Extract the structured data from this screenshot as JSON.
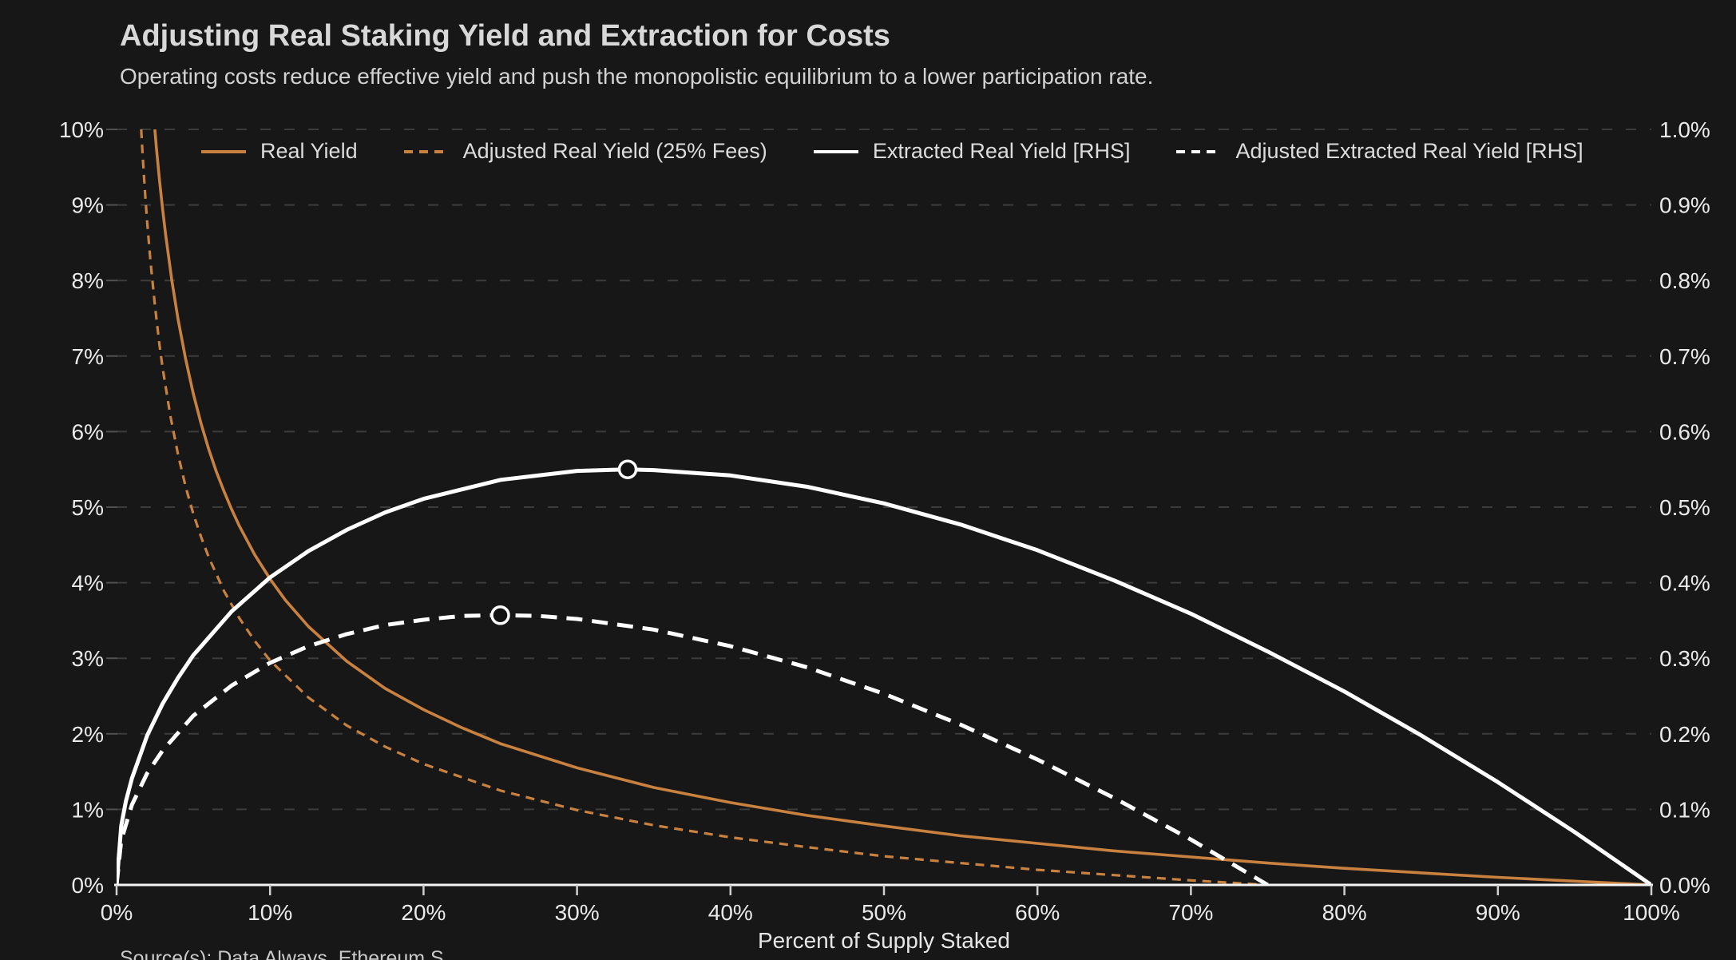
{
  "header": {
    "title": "Adjusting Real Staking Yield and Extraction for Costs",
    "subtitle": "Operating costs reduce effective yield and push the monopolistic equilibrium to a lower participation rate."
  },
  "footer": {
    "source": "Source(s): Data Always, Ethereum S"
  },
  "colors": {
    "background": "#171717",
    "orange": "#c9813f",
    "white_line": "#ffffff",
    "grid": "#3c3c3c",
    "axis_line": "#f5f5f5",
    "tick_label": "#eaeaea",
    "marker_fill": "#131313"
  },
  "chart_data": {
    "type": "line",
    "title": "Adjusting Real Staking Yield and Extraction for Costs",
    "xlabel": "Percent of Supply Staked",
    "grid": "horizontal-dashed",
    "legend_position": "top",
    "x_axis": {
      "label": "Percent of Supply Staked",
      "range": [
        0,
        100
      ],
      "tick_labels": [
        "0%",
        "10%",
        "20%",
        "30%",
        "40%",
        "50%",
        "60%",
        "70%",
        "80%",
        "90%",
        "100%"
      ],
      "tick_values": [
        0,
        10,
        20,
        30,
        40,
        50,
        60,
        70,
        80,
        90,
        100
      ]
    },
    "y_axis_left": {
      "range": [
        0,
        10
      ],
      "tick_labels": [
        "0%",
        "1%",
        "2%",
        "3%",
        "4%",
        "5%",
        "6%",
        "7%",
        "8%",
        "9%",
        "10%"
      ],
      "tick_values": [
        0,
        1,
        2,
        3,
        4,
        5,
        6,
        7,
        8,
        9,
        10
      ]
    },
    "y_axis_right": {
      "range": [
        0,
        1
      ],
      "tick_labels": [
        "0.0%",
        "0.1%",
        "0.2%",
        "0.3%",
        "0.4%",
        "0.5%",
        "0.6%",
        "0.7%",
        "0.8%",
        "0.9%",
        "1.0%"
      ],
      "tick_values": [
        0,
        0.1,
        0.2,
        0.3,
        0.4,
        0.5,
        0.6,
        0.7,
        0.8,
        0.9,
        1.0
      ]
    },
    "series": [
      {
        "name": "Real Yield",
        "axis": "left",
        "color": "#c9813f",
        "dash": "solid",
        "width": 3.6,
        "points": [
          [
            2.49,
            10
          ],
          [
            2.6,
            9.74
          ],
          [
            2.8,
            9.32
          ],
          [
            3,
            8.94
          ],
          [
            3.2,
            8.6
          ],
          [
            3.6,
            8.0
          ],
          [
            4,
            7.49
          ],
          [
            4.5,
            6.96
          ],
          [
            5,
            6.5
          ],
          [
            5.5,
            6.11
          ],
          [
            6,
            5.77
          ],
          [
            6.5,
            5.47
          ],
          [
            7,
            5.21
          ],
          [
            7.5,
            4.97
          ],
          [
            8,
            4.75
          ],
          [
            9,
            4.37
          ],
          [
            10,
            4.05
          ],
          [
            11,
            3.77
          ],
          [
            12.5,
            3.42
          ],
          [
            15,
            2.96
          ],
          [
            17.5,
            2.6
          ],
          [
            20,
            2.32
          ],
          [
            22.5,
            2.08
          ],
          [
            25,
            1.87
          ],
          [
            30,
            1.55
          ],
          [
            35,
            1.29
          ],
          [
            40,
            1.09
          ],
          [
            45,
            0.92
          ],
          [
            50,
            0.78
          ],
          [
            55,
            0.65
          ],
          [
            60,
            0.55
          ],
          [
            65,
            0.45
          ],
          [
            70,
            0.37
          ],
          [
            75,
            0.29
          ],
          [
            80,
            0.22
          ],
          [
            85,
            0.16
          ],
          [
            90,
            0.1
          ],
          [
            95,
            0.05
          ],
          [
            100,
            0
          ]
        ]
      },
      {
        "name": "Adjusted Real Yield (25% Fees)",
        "axis": "left",
        "color": "#c9813f",
        "dash": "dashed",
        "width": 3.2,
        "points": [
          [
            1.6,
            10
          ],
          [
            1.7,
            9.65
          ],
          [
            1.8,
            9.33
          ],
          [
            1.9,
            9.03
          ],
          [
            2,
            8.76
          ],
          [
            2.2,
            8.27
          ],
          [
            2.5,
            7.66
          ],
          [
            2.8,
            7.14
          ],
          [
            3,
            6.84
          ],
          [
            3.5,
            6.21
          ],
          [
            4,
            5.7
          ],
          [
            4.5,
            5.27
          ],
          [
            5,
            4.91
          ],
          [
            5.5,
            4.61
          ],
          [
            6,
            4.34
          ],
          [
            7,
            3.89
          ],
          [
            8,
            3.53
          ],
          [
            9,
            3.23
          ],
          [
            10,
            2.97
          ],
          [
            12.5,
            2.48
          ],
          [
            15,
            2.11
          ],
          [
            17.5,
            1.83
          ],
          [
            20,
            1.6
          ],
          [
            25,
            1.25
          ],
          [
            30,
            0.99
          ],
          [
            35,
            0.79
          ],
          [
            40,
            0.63
          ],
          [
            45,
            0.5
          ],
          [
            50,
            0.38
          ],
          [
            55,
            0.29
          ],
          [
            60,
            0.2
          ],
          [
            65,
            0.13
          ],
          [
            70,
            0.06
          ],
          [
            75,
            0
          ]
        ]
      },
      {
        "name": "Extracted Real Yield [RHS]",
        "axis": "right",
        "color": "#ffffff",
        "dash": "solid",
        "width": 5,
        "points": [
          [
            0,
            0
          ],
          [
            0.3,
            0.078
          ],
          [
            0.6,
            0.11
          ],
          [
            1,
            0.141
          ],
          [
            2,
            0.198
          ],
          [
            3,
            0.24
          ],
          [
            4,
            0.274
          ],
          [
            5,
            0.304
          ],
          [
            7.5,
            0.362
          ],
          [
            10,
            0.407
          ],
          [
            12.5,
            0.442
          ],
          [
            15,
            0.47
          ],
          [
            17.5,
            0.493
          ],
          [
            20,
            0.511
          ],
          [
            25,
            0.536
          ],
          [
            30,
            0.548
          ],
          [
            33.3,
            0.55
          ],
          [
            35,
            0.549
          ],
          [
            40,
            0.542
          ],
          [
            45,
            0.527
          ],
          [
            50,
            0.505
          ],
          [
            55,
            0.477
          ],
          [
            60,
            0.443
          ],
          [
            65,
            0.403
          ],
          [
            70,
            0.359
          ],
          [
            75,
            0.309
          ],
          [
            80,
            0.256
          ],
          [
            85,
            0.198
          ],
          [
            90,
            0.136
          ],
          [
            95,
            0.07
          ],
          [
            100,
            0
          ]
        ]
      },
      {
        "name": "Adjusted Extracted Real Yield [RHS]",
        "axis": "right",
        "color": "#ffffff",
        "dash": "dashed",
        "width": 5,
        "points": [
          [
            0,
            0
          ],
          [
            0.3,
            0.059
          ],
          [
            1,
            0.106
          ],
          [
            2,
            0.148
          ],
          [
            3,
            0.178
          ],
          [
            5,
            0.224
          ],
          [
            7.5,
            0.264
          ],
          [
            10,
            0.294
          ],
          [
            12.5,
            0.316
          ],
          [
            15,
            0.332
          ],
          [
            17.5,
            0.344
          ],
          [
            20,
            0.351
          ],
          [
            22.5,
            0.356
          ],
          [
            25,
            0.357
          ],
          [
            27.5,
            0.356
          ],
          [
            30,
            0.352
          ],
          [
            35,
            0.338
          ],
          [
            40,
            0.316
          ],
          [
            45,
            0.288
          ],
          [
            50,
            0.253
          ],
          [
            55,
            0.212
          ],
          [
            60,
            0.166
          ],
          [
            65,
            0.115
          ],
          [
            70,
            0.06
          ],
          [
            72.5,
            0.03
          ],
          [
            75,
            0
          ]
        ]
      }
    ],
    "markers": [
      {
        "series": "Extracted Real Yield [RHS]",
        "axis": "right",
        "x": 33.3,
        "y": 0.55
      },
      {
        "series": "Adjusted Extracted Real Yield [RHS]",
        "axis": "right",
        "x": 25,
        "y": 0.357
      }
    ]
  }
}
